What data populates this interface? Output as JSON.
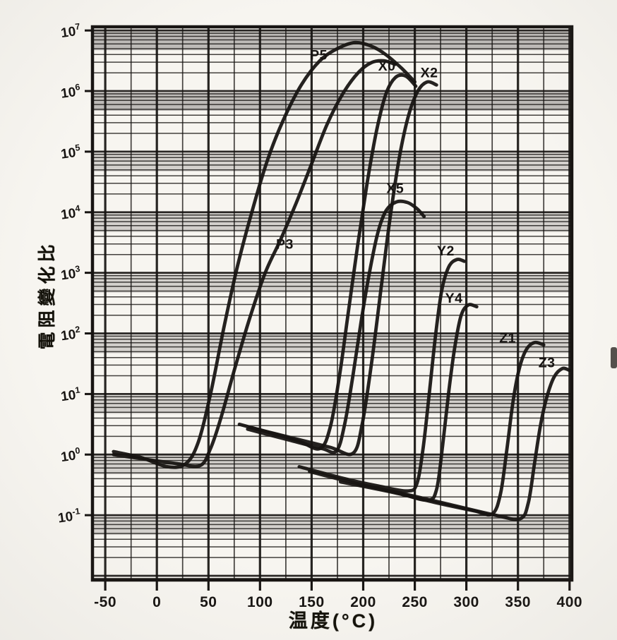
{
  "figure": {
    "description": "Scanned log-scale chart of resistance change ratio versus temperature for PTC thermistor samples",
    "paper_color": "#f7f5f0",
    "ink_color": "#171412"
  },
  "chart_data": {
    "type": "line",
    "title": "",
    "x_axis": {
      "label": "温度(°C)",
      "ticks": [
        -50,
        0,
        50,
        100,
        150,
        200,
        250,
        300,
        350,
        400
      ],
      "minor_tick_step": 25,
      "range": [
        -62.4,
        402.2
      ]
    },
    "y_axis": {
      "label": "電阻變化比",
      "scale": "log",
      "tick_labels": [
        "10^7",
        "10^6",
        "10^5",
        "10^4",
        "10^3",
        "10^2",
        "10^1",
        "10^0",
        "10^-1"
      ],
      "range_log10": [
        -2.07,
        7.06
      ]
    },
    "grid": {
      "vertical": "major every 50°C, minor every 25°C",
      "horizontal": "log decades with minor lines 2-9"
    },
    "values_are": "[temperature_C, log10(resistance_change_ratio)]",
    "series": [
      {
        "name": "P5",
        "label": "P5",
        "label_at": [
          157,
          6.6
        ],
        "points": [
          [
            -42,
            0.05
          ],
          [
            -15,
            -0.05
          ],
          [
            10,
            -0.2
          ],
          [
            28,
            -0.15
          ],
          [
            40,
            0.2
          ],
          [
            52,
            1.0
          ],
          [
            65,
            2.1
          ],
          [
            78,
            3.1
          ],
          [
            92,
            4.0
          ],
          [
            107,
            4.85
          ],
          [
            122,
            5.5
          ],
          [
            140,
            6.1
          ],
          [
            158,
            6.5
          ],
          [
            175,
            6.7
          ],
          [
            192,
            6.8
          ],
          [
            208,
            6.74
          ],
          [
            222,
            6.6
          ],
          [
            237,
            6.38
          ],
          [
            250,
            6.15
          ]
        ]
      },
      {
        "name": "P3",
        "label": "P3",
        "label_at": [
          124,
          3.48
        ],
        "points": [
          [
            -42,
            0.0
          ],
          [
            -10,
            -0.08
          ],
          [
            20,
            -0.15
          ],
          [
            42,
            -0.18
          ],
          [
            52,
            0.1
          ],
          [
            62,
            0.6
          ],
          [
            76,
            1.45
          ],
          [
            90,
            2.25
          ],
          [
            105,
            3.0
          ],
          [
            120,
            3.55
          ],
          [
            135,
            4.15
          ],
          [
            150,
            4.8
          ],
          [
            165,
            5.45
          ],
          [
            180,
            5.95
          ],
          [
            195,
            6.3
          ],
          [
            208,
            6.47
          ],
          [
            220,
            6.5
          ],
          [
            231,
            6.44
          ]
        ]
      },
      {
        "name": "X0",
        "label": "X0",
        "label_at": [
          223,
          6.42
        ],
        "points": [
          [
            80,
            0.5
          ],
          [
            110,
            0.36
          ],
          [
            138,
            0.22
          ],
          [
            158,
            0.1
          ],
          [
            168,
            0.45
          ],
          [
            177,
            1.3
          ],
          [
            186,
            2.4
          ],
          [
            195,
            3.5
          ],
          [
            204,
            4.5
          ],
          [
            213,
            5.35
          ],
          [
            222,
            5.95
          ],
          [
            231,
            6.22
          ],
          [
            241,
            6.25
          ],
          [
            251,
            6.08
          ]
        ]
      },
      {
        "name": "X2",
        "label": "X2",
        "label_at": [
          264,
          6.31
        ],
        "points": [
          [
            90,
            0.45
          ],
          [
            130,
            0.28
          ],
          [
            168,
            0.12
          ],
          [
            190,
            0.02
          ],
          [
            199,
            0.5
          ],
          [
            208,
            1.5
          ],
          [
            217,
            2.7
          ],
          [
            226,
            3.9
          ],
          [
            235,
            4.9
          ],
          [
            244,
            5.6
          ],
          [
            253,
            6.0
          ],
          [
            262,
            6.15
          ],
          [
            271,
            6.1
          ]
        ]
      },
      {
        "name": "X5",
        "label": "X5",
        "label_at": [
          231,
          4.4
        ],
        "points": [
          [
            88,
            0.42
          ],
          [
            128,
            0.24
          ],
          [
            160,
            0.1
          ],
          [
            174,
            0.06
          ],
          [
            182,
            0.5
          ],
          [
            190,
            1.3
          ],
          [
            198,
            2.2
          ],
          [
            206,
            3.0
          ],
          [
            214,
            3.65
          ],
          [
            222,
            4.02
          ],
          [
            232,
            4.17
          ],
          [
            243,
            4.16
          ],
          [
            252,
            4.06
          ],
          [
            259,
            3.93
          ]
        ]
      },
      {
        "name": "Y2",
        "label": "Y2",
        "label_at": [
          280,
          3.37
        ],
        "points": [
          [
            138,
            -0.2
          ],
          [
            178,
            -0.38
          ],
          [
            215,
            -0.52
          ],
          [
            243,
            -0.6
          ],
          [
            252,
            -0.48
          ],
          [
            258,
            0.1
          ],
          [
            264,
            1.0
          ],
          [
            270,
            1.95
          ],
          [
            276,
            2.7
          ],
          [
            283,
            3.1
          ],
          [
            291,
            3.22
          ],
          [
            298,
            3.19
          ]
        ]
      },
      {
        "name": "Y4",
        "label": "Y4",
        "label_at": [
          288,
          2.59
        ],
        "points": [
          [
            148,
            -0.28
          ],
          [
            192,
            -0.47
          ],
          [
            233,
            -0.63
          ],
          [
            262,
            -0.75
          ],
          [
            271,
            -0.58
          ],
          [
            277,
            0.15
          ],
          [
            283,
            1.05
          ],
          [
            289,
            1.8
          ],
          [
            295,
            2.3
          ],
          [
            302,
            2.47
          ],
          [
            310,
            2.44
          ]
        ]
      },
      {
        "name": "Z1",
        "label": "Z1",
        "label_at": [
          340,
          1.93
        ],
        "points": [
          [
            178,
            -0.45
          ],
          [
            228,
            -0.62
          ],
          [
            272,
            -0.8
          ],
          [
            308,
            -0.93
          ],
          [
            325,
            -0.98
          ],
          [
            333,
            -0.65
          ],
          [
            339,
            0.05
          ],
          [
            345,
            0.85
          ],
          [
            351,
            1.4
          ],
          [
            358,
            1.73
          ],
          [
            366,
            1.85
          ],
          [
            375,
            1.81
          ]
        ]
      },
      {
        "name": "Z3",
        "label": "Z3",
        "label_at": [
          378,
          1.52
        ],
        "points": [
          [
            228,
            -0.6
          ],
          [
            278,
            -0.8
          ],
          [
            328,
            -1.0
          ],
          [
            352,
            -1.06
          ],
          [
            360,
            -0.8
          ],
          [
            366,
            -0.15
          ],
          [
            372,
            0.5
          ],
          [
            378,
            0.95
          ],
          [
            385,
            1.28
          ],
          [
            393,
            1.42
          ],
          [
            400,
            1.39
          ]
        ]
      }
    ]
  }
}
